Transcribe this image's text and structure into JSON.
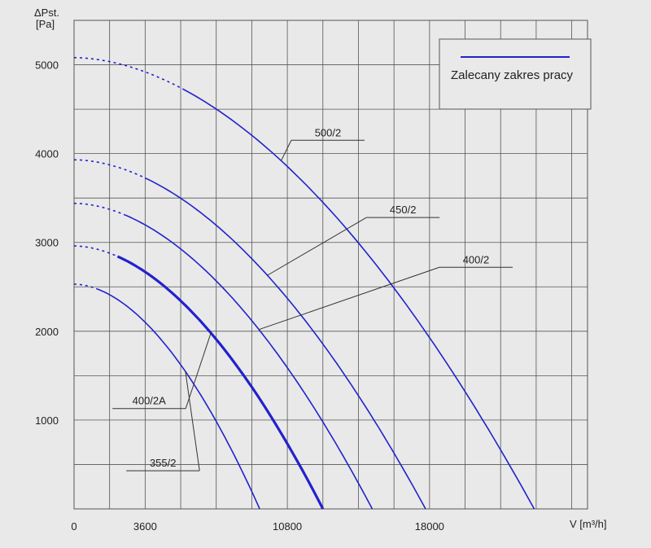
{
  "chart_data": {
    "type": "line",
    "title": "",
    "ylabel_line1": "ΔPst.",
    "ylabel_line2": "[Pa]",
    "xlabel": "V [m³/h]",
    "xlim": [
      0,
      26000
    ],
    "ylim": [
      0,
      5500
    ],
    "x_ticks": [
      0,
      3600,
      10800,
      18000
    ],
    "x_tick_labels": [
      "0",
      "3600",
      "10800",
      "18000"
    ],
    "y_ticks": [
      1000,
      2000,
      3000,
      4000,
      5000
    ],
    "y_tick_labels": [
      "1000",
      "2000",
      "3000",
      "4000",
      "5000"
    ],
    "grid": true,
    "legend_position": "top-right",
    "legend_label": "Zalecany zakres pracy",
    "colors": {
      "curve": "#2222cc",
      "background": "#e9e9e9",
      "grid": "#555555"
    },
    "series": [
      {
        "name": "500/2",
        "x_start": 0,
        "y_start": 5080,
        "x_end": 23300,
        "recommended_from_x": 5600,
        "label_x": 11000,
        "label_y": 4150
      },
      {
        "name": "450/2",
        "x_start": 0,
        "y_start": 3930,
        "x_end": 17800,
        "recommended_from_x": 3600,
        "label_x": 14800,
        "label_y": 3280
      },
      {
        "name": "400/2",
        "x_start": 0,
        "y_start": 3440,
        "x_end": 15100,
        "recommended_from_x": 2600,
        "label_x": 18500,
        "label_y": 2720
      },
      {
        "name": "400/2A",
        "x_start": 0,
        "y_start": 2960,
        "x_end": 12600,
        "recommended_from_x": 2200,
        "label_x": 3800,
        "label_y": 1130,
        "bold": true
      },
      {
        "name": "355/2",
        "x_start": 0,
        "y_start": 2530,
        "x_end": 9400,
        "recommended_from_x": 1200,
        "label_x": 4500,
        "label_y": 430
      }
    ]
  }
}
